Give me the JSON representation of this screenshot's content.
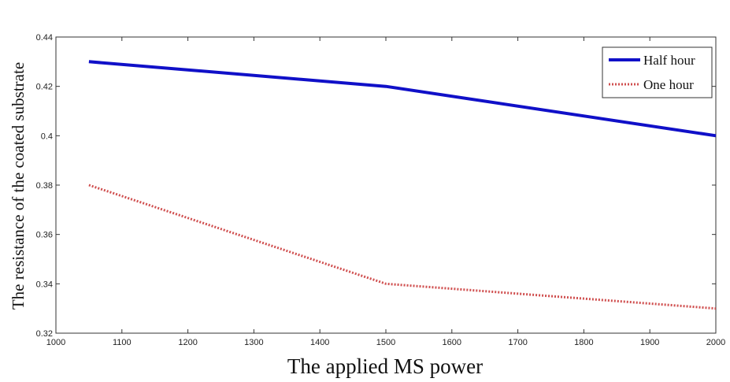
{
  "chart_data": {
    "type": "line",
    "title": "",
    "xlabel": "The applied MS power",
    "ylabel": "The resistance of the coated substrate",
    "xlim": [
      1000,
      2000
    ],
    "ylim": [
      0.32,
      0.44
    ],
    "x_ticks": [
      "1000",
      "1100",
      "1200",
      "1300",
      "1400",
      "1500",
      "1600",
      "1700",
      "1800",
      "1900",
      "2000"
    ],
    "y_ticks": [
      "0.32",
      "0.34",
      "0.36",
      "0.38",
      "0.4",
      "0.42",
      "0.44"
    ],
    "legend_position": "top-right",
    "grid": false,
    "series": [
      {
        "name": "Half hour",
        "color": "#1010c8",
        "style": "solid",
        "x": [
          1050,
          1500,
          2000
        ],
        "y": [
          0.43,
          0.42,
          0.4
        ]
      },
      {
        "name": "One hour",
        "color": "#d05050",
        "style": "dotted",
        "x": [
          1050,
          1500,
          2000
        ],
        "y": [
          0.38,
          0.34,
          0.33
        ]
      }
    ]
  }
}
